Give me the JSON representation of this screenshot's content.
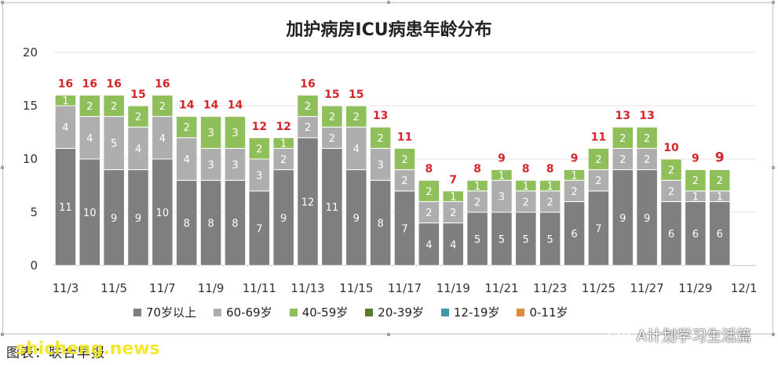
{
  "chart_data": {
    "type": "bar",
    "stacked": true,
    "title": "加护病房ICU病患年龄分布",
    "categories": [
      "11/3",
      "11/4",
      "11/5",
      "11/6",
      "11/7",
      "11/8",
      "11/9",
      "11/10",
      "11/11",
      "11/12",
      "11/13",
      "11/14",
      "11/15",
      "11/16",
      "11/17",
      "11/18",
      "11/19",
      "11/20",
      "11/21",
      "11/22",
      "11/23",
      "11/24",
      "11/25",
      "11/26",
      "11/27",
      "11/28",
      "11/29",
      "11/30",
      "12/1"
    ],
    "x_tick_labels": [
      "11/3",
      "11/5",
      "11/7",
      "11/9",
      "11/11",
      "11/13",
      "11/15",
      "11/17",
      "11/19",
      "11/21",
      "11/23",
      "11/25",
      "11/27",
      "11/29",
      "12/1"
    ],
    "ylim": [
      0,
      20
    ],
    "y_ticks": [
      0,
      5,
      10,
      15,
      20
    ],
    "totals": [
      16,
      16,
      16,
      15,
      16,
      14,
      14,
      14,
      12,
      12,
      16,
      15,
      15,
      13,
      11,
      8,
      7,
      8,
      9,
      8,
      8,
      9,
      11,
      13,
      13,
      10,
      9,
      9,
      null
    ],
    "series": [
      {
        "name": "70岁以上",
        "color": "#7f7f7f",
        "values": [
          11,
          10,
          9,
          9,
          10,
          8,
          8,
          8,
          7,
          9,
          12,
          11,
          9,
          8,
          7,
          4,
          4,
          5,
          5,
          5,
          5,
          6,
          7,
          9,
          9,
          6,
          6,
          6,
          null
        ]
      },
      {
        "name": "60-69岁",
        "color": "#aeaeae",
        "values": [
          4,
          4,
          5,
          4,
          4,
          4,
          3,
          3,
          3,
          2,
          2,
          2,
          4,
          3,
          2,
          2,
          2,
          2,
          3,
          2,
          2,
          2,
          2,
          2,
          2,
          2,
          1,
          1,
          null
        ]
      },
      {
        "name": "40-59岁",
        "color": "#8fbf5a",
        "values": [
          1,
          2,
          2,
          2,
          2,
          2,
          3,
          3,
          2,
          1,
          2,
          2,
          2,
          2,
          2,
          2,
          1,
          1,
          1,
          1,
          1,
          1,
          2,
          2,
          2,
          2,
          2,
          2,
          null
        ]
      },
      {
        "name": "20-39岁",
        "color": "#5b7a2e",
        "values": [
          0,
          0,
          0,
          0,
          0,
          0,
          0,
          0,
          0,
          0,
          0,
          0,
          0,
          0,
          0,
          0,
          0,
          0,
          0,
          0,
          0,
          0,
          0,
          0,
          0,
          0,
          0,
          0,
          null
        ]
      },
      {
        "name": "12-19岁",
        "color": "#3e9aa8",
        "values": [
          0,
          0,
          0,
          0,
          0,
          0,
          0,
          0,
          0,
          0,
          0,
          0,
          0,
          0,
          0,
          0,
          0,
          0,
          0,
          0,
          0,
          0,
          0,
          0,
          0,
          0,
          0,
          0,
          null
        ]
      },
      {
        "name": "0-11岁",
        "color": "#e38a3a",
        "values": [
          0,
          0,
          0,
          0,
          0,
          0,
          0,
          0,
          0,
          0,
          0,
          0,
          0,
          0,
          0,
          0,
          0,
          0,
          0,
          0,
          0,
          0,
          0,
          0,
          0,
          0,
          0,
          0,
          null
        ]
      }
    ],
    "legend_position": "bottom",
    "total_label_color": "#d4252a",
    "grid": true
  },
  "footer": {
    "source_text": "图表：联合早报",
    "watermark_site": "shicheng.news",
    "brand_text": "A计划学习生活篇"
  }
}
